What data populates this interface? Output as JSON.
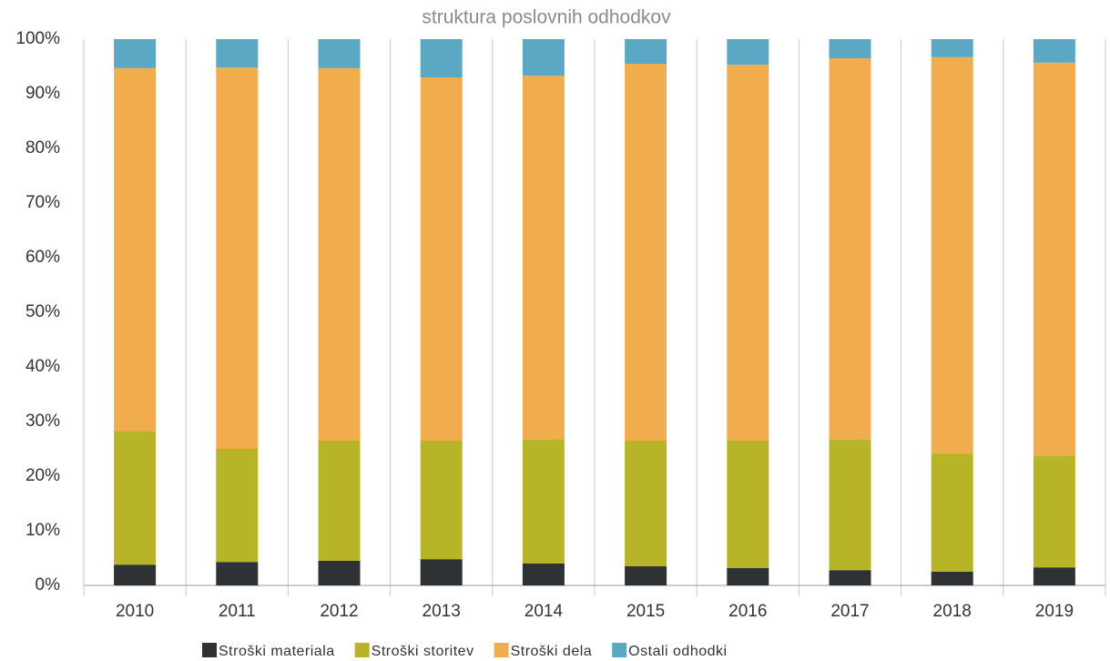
{
  "chart_data": {
    "type": "stacked_bar",
    "title": "struktura poslovnih odhodkov",
    "categories": [
      "2010",
      "2011",
      "2012",
      "2013",
      "2014",
      "2015",
      "2016",
      "2017",
      "2018",
      "2019"
    ],
    "series": [
      {
        "name": "Stroški materiala",
        "color": "#2e3234",
        "values": [
          3.8,
          4.3,
          4.5,
          4.8,
          4.0,
          3.5,
          3.2,
          2.8,
          2.5,
          3.3
        ]
      },
      {
        "name": "Stroški storitev",
        "color": "#b8b428",
        "values": [
          24.5,
          20.7,
          22.0,
          21.7,
          22.8,
          23.0,
          23.3,
          24.0,
          21.7,
          20.5
        ]
      },
      {
        "name": "Stroški dela",
        "color": "#f1ad4d",
        "values": [
          66.4,
          69.8,
          68.2,
          66.5,
          66.5,
          69.0,
          68.8,
          69.7,
          72.5,
          71.9
        ]
      },
      {
        "name": "Ostali odhodki",
        "color": "#5aa8c3",
        "values": [
          5.3,
          5.2,
          5.3,
          7.0,
          6.7,
          4.5,
          4.7,
          3.5,
          3.3,
          4.3
        ]
      }
    ],
    "ylim": [
      0,
      100
    ],
    "yticks": [
      {
        "value": 0,
        "label": "0%"
      },
      {
        "value": 10,
        "label": "10%"
      },
      {
        "value": 20,
        "label": "20%"
      },
      {
        "value": 30,
        "label": "30%"
      },
      {
        "value": 40,
        "label": "40%"
      },
      {
        "value": 50,
        "label": "50%"
      },
      {
        "value": 60,
        "label": "60%"
      },
      {
        "value": 70,
        "label": "70%"
      },
      {
        "value": 80,
        "label": "80%"
      },
      {
        "value": 90,
        "label": "90%"
      },
      {
        "value": 100,
        "label": "100%"
      }
    ]
  }
}
